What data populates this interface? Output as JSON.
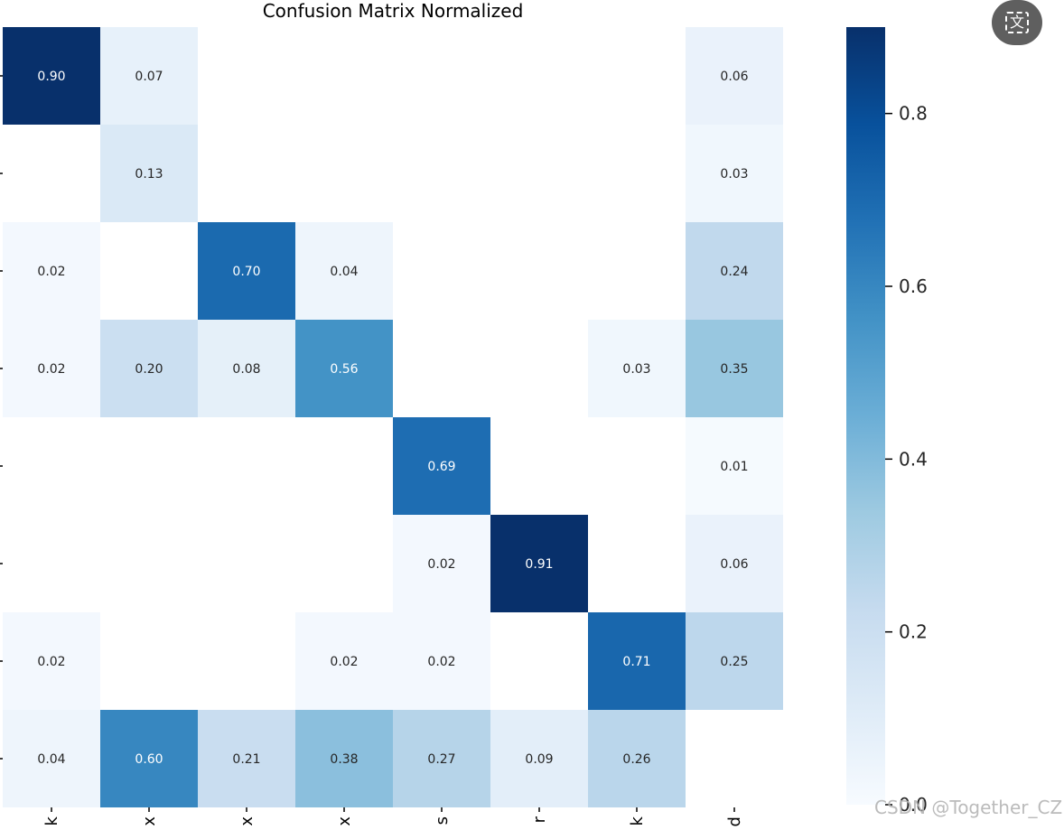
{
  "chart_data": {
    "type": "heatmap",
    "title": "Confusion Matrix Normalized",
    "colormap": "Blues",
    "color_range": [
      0.0,
      0.9
    ],
    "colorbar_ticks": [
      {
        "value": 0.0,
        "label": "0.0"
      },
      {
        "value": 0.2,
        "label": "0.2"
      },
      {
        "value": 0.4,
        "label": "0.4"
      },
      {
        "value": 0.6,
        "label": "0.6"
      },
      {
        "value": 0.8,
        "label": "0.8"
      }
    ],
    "n_rows": 8,
    "n_cols": 8,
    "matrix": [
      [
        0.9,
        0.07,
        null,
        null,
        null,
        null,
        null,
        0.06
      ],
      [
        null,
        0.13,
        null,
        null,
        null,
        null,
        null,
        0.03
      ],
      [
        0.02,
        null,
        0.7,
        0.04,
        null,
        null,
        null,
        0.24
      ],
      [
        0.02,
        0.2,
        0.08,
        0.56,
        null,
        null,
        0.03,
        0.35
      ],
      [
        null,
        null,
        null,
        null,
        0.69,
        null,
        null,
        0.01
      ],
      [
        null,
        null,
        null,
        null,
        0.02,
        0.91,
        null,
        0.06
      ],
      [
        0.02,
        null,
        null,
        0.02,
        0.02,
        null,
        0.71,
        0.25
      ],
      [
        0.04,
        0.6,
        0.21,
        0.38,
        0.27,
        0.09,
        0.26,
        null
      ]
    ],
    "x_tick_labels_partial": [
      "k",
      "x",
      "x",
      "x",
      "s",
      "r",
      "k",
      "d"
    ]
  },
  "ui": {
    "translate_icon_glyph": "文",
    "watermark": "CSDN @Together_CZ"
  }
}
